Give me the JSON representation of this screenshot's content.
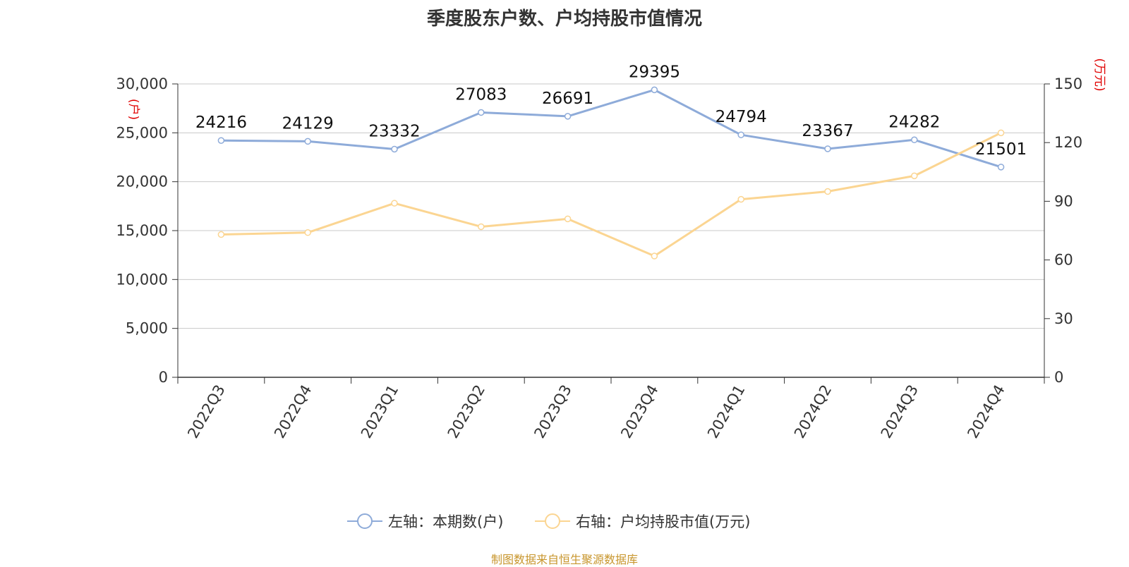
{
  "chart_data": {
    "type": "line",
    "title": "季度股东户数、户均持股市值情况",
    "categories": [
      "2022Q3",
      "2022Q4",
      "2023Q1",
      "2023Q2",
      "2023Q3",
      "2023Q4",
      "2024Q1",
      "2024Q2",
      "2024Q3",
      "2024Q4"
    ],
    "series": [
      {
        "name": "左轴：本期数(户)",
        "axis": "left",
        "color": "#8eabd9",
        "values": [
          24216,
          24129,
          23332,
          27083,
          26691,
          29395,
          24794,
          23367,
          24282,
          21501
        ],
        "data_labels": [
          "24216",
          "24129",
          "23332",
          "27083",
          "26691",
          "29395",
          "24794",
          "23367",
          "24282",
          "21501"
        ]
      },
      {
        "name": "右轴：户均持股市值(万元)",
        "axis": "right",
        "color": "#fbd592",
        "values": [
          73,
          74,
          89,
          77,
          81,
          62,
          91,
          95,
          103,
          125
        ]
      }
    ],
    "left_axis": {
      "label": "(户)",
      "ylim": [
        0,
        30000
      ],
      "ticks": [
        0,
        5000,
        10000,
        15000,
        20000,
        25000,
        30000
      ],
      "tick_labels": [
        "0",
        "5,000",
        "10,000",
        "15,000",
        "20,000",
        "25,000",
        "30,000"
      ]
    },
    "right_axis": {
      "label": "(万元)",
      "ylim": [
        0,
        150
      ],
      "ticks": [
        0,
        30,
        60,
        90,
        120,
        150
      ],
      "tick_labels": [
        "0",
        "30",
        "60",
        "90",
        "120",
        "150"
      ]
    },
    "grid": true,
    "legend_position": "bottom",
    "source": "制图数据来自恒生聚源数据库"
  }
}
